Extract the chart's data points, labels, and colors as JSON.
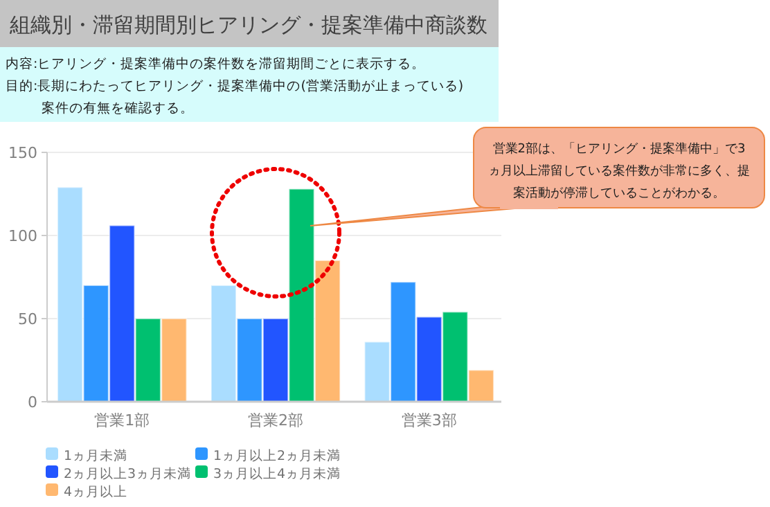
{
  "chart_data": {
    "type": "bar",
    "title": "組織別・滞留期間別ヒアリング・提案準備中商談数",
    "subtitle": "内容:ヒアリング・提案準備中の案件数を滞留期間ごとに表示する。",
    "annotations": [
      "目的:長期にわたってヒアリング・提案準備中の(営業活動が止まっている)案件の有無を確認する。",
      "営業2部は、「ヒアリング・提案準備中」で3ヵ月以上滞留している案件数が非常に多く、提案活動が停滞していることがわかる。"
    ],
    "categories": [
      "営業1部",
      "営業2部",
      "営業3部"
    ],
    "series": [
      {
        "name": "1ヵ月未満",
        "color": "#aaddff",
        "values": [
          129,
          70,
          36
        ]
      },
      {
        "name": "1ヵ月以上2ヵ月未満",
        "color": "#2e96ff",
        "values": [
          70,
          50,
          72
        ]
      },
      {
        "name": "2ヵ月以上3ヵ月未満",
        "color": "#2255ff",
        "values": [
          106,
          50,
          51
        ]
      },
      {
        "name": "3ヵ月以上4ヵ月未満",
        "color": "#00c070",
        "values": [
          50,
          128,
          54
        ]
      },
      {
        "name": "4ヵ月以上",
        "color": "#ffb870",
        "values": [
          50,
          85,
          19
        ]
      }
    ],
    "ylim": [
      0,
      150
    ],
    "yticks": [
      0,
      50,
      100,
      150
    ],
    "grid": "y",
    "legend": "bottom"
  }
}
